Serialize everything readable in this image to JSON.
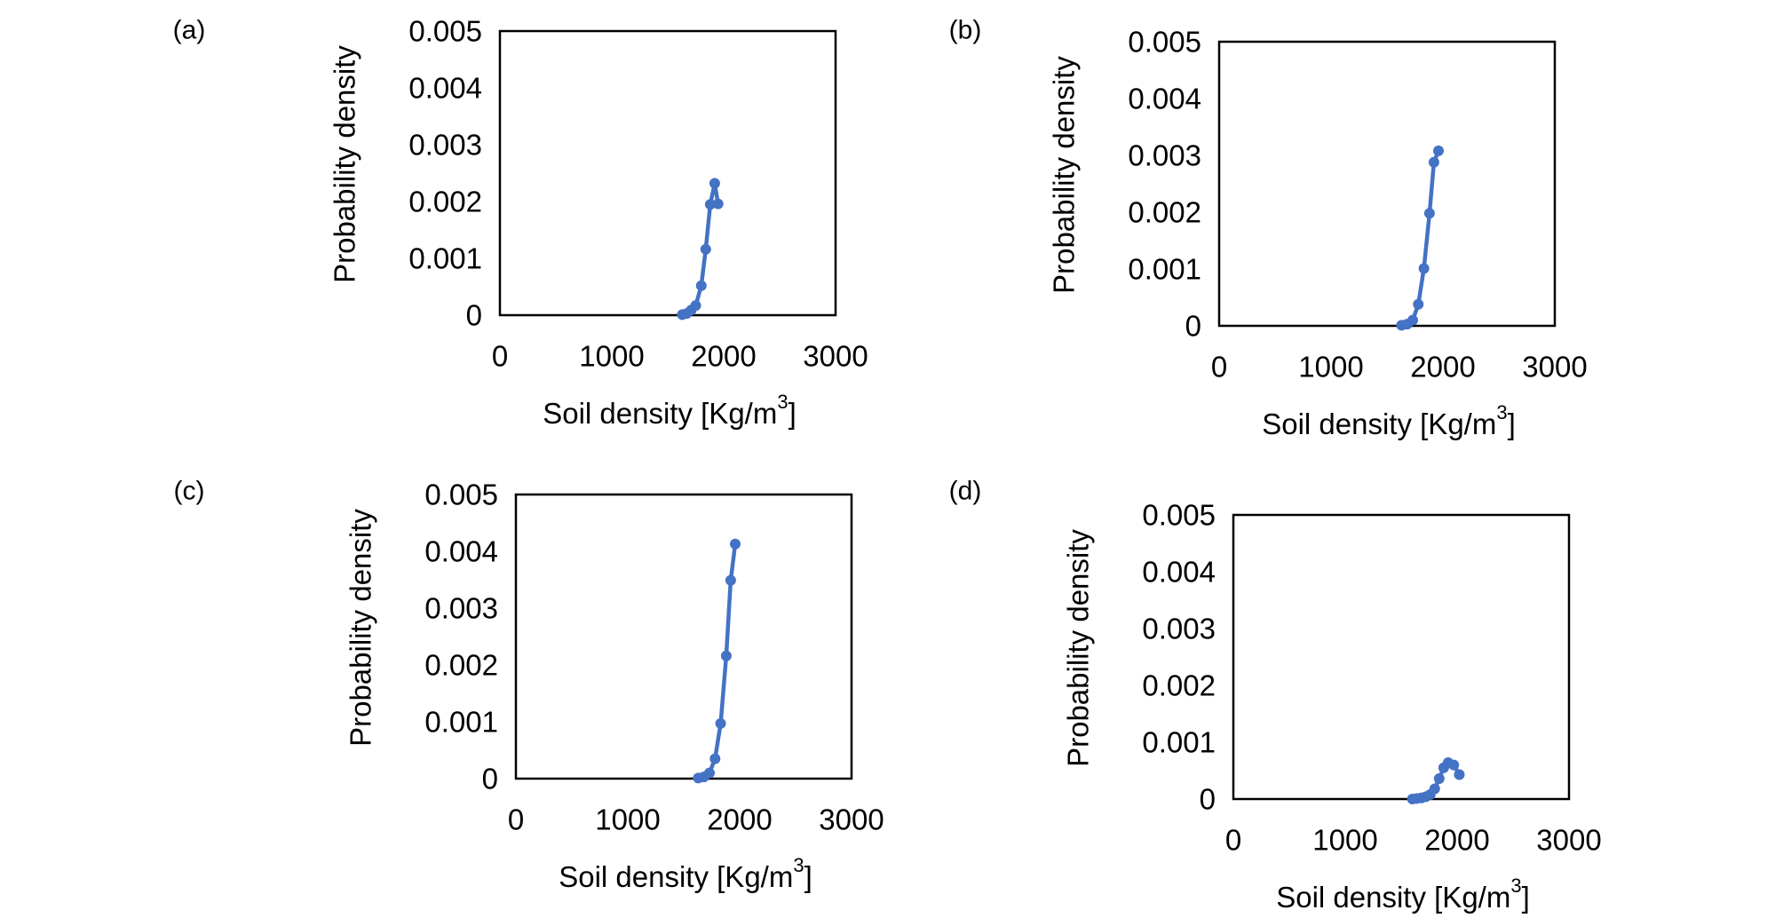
{
  "figure": {
    "panels_label": "Soil density probability density panels"
  },
  "chart_data": [
    {
      "type": "line",
      "panel_label": "(a)",
      "xlabel": "Soil density  [Kg/m",
      "xlabel_sup": "3",
      "xlabel_close": "]",
      "ylabel": "Probability  density",
      "xlim": [
        0,
        3000
      ],
      "ylim": [
        0,
        0.005
      ],
      "x_ticks": [
        "0",
        "1000",
        "2000",
        "3000"
      ],
      "y_ticks": [
        "0",
        "0.001",
        "0.002",
        "0.003",
        "0.004",
        "0.005"
      ],
      "color": "#4472C4",
      "series": [
        {
          "x": [
            1630,
            1670,
            1710,
            1750,
            1800,
            1840,
            1880,
            1920,
            1950
          ],
          "y": [
            1e-05,
            3e-05,
            9e-05,
            0.00017,
            0.00052,
            0.00116,
            0.00195,
            0.00232,
            0.00196
          ]
        }
      ]
    },
    {
      "type": "line",
      "panel_label": "(b)",
      "xlabel": "Soil density  [Kg/m",
      "xlabel_sup": "3",
      "xlabel_close": "]",
      "ylabel": "Probability  density",
      "xlim": [
        0,
        3000
      ],
      "ylim": [
        0,
        0.005
      ],
      "x_ticks": [
        "0",
        "1000",
        "2000",
        "3000"
      ],
      "y_ticks": [
        "0",
        "0.001",
        "0.002",
        "0.003",
        "0.004",
        "0.005"
      ],
      "color": "#4472C4",
      "series": [
        {
          "x": [
            1630,
            1680,
            1730,
            1780,
            1830,
            1880,
            1920,
            1960
          ],
          "y": [
            1e-05,
            3e-05,
            0.0001,
            0.00038,
            0.00101,
            0.00198,
            0.00288,
            0.00308
          ]
        }
      ]
    },
    {
      "type": "line",
      "panel_label": "(c)",
      "xlabel": "Soil density  [Kg/m",
      "xlabel_sup": "3",
      "xlabel_close": "]",
      "ylabel": "Probability  density",
      "xlim": [
        0,
        3000
      ],
      "ylim": [
        0,
        0.005
      ],
      "x_ticks": [
        "0",
        "1000",
        "2000",
        "3000"
      ],
      "y_ticks": [
        "0",
        "0.001",
        "0.002",
        "0.003",
        "0.004",
        "0.005"
      ],
      "color": "#4472C4",
      "series": [
        {
          "x": [
            1630,
            1680,
            1730,
            1780,
            1830,
            1880,
            1920,
            1960
          ],
          "y": [
            1e-05,
            3e-05,
            0.0001,
            0.00035,
            0.00097,
            0.00216,
            0.00349,
            0.00413
          ]
        }
      ]
    },
    {
      "type": "line",
      "panel_label": "(d)",
      "xlabel": "Soil density  [Kg/m",
      "xlabel_sup": "3",
      "xlabel_close": "]",
      "ylabel": "Probability  density",
      "xlim": [
        0,
        3000
      ],
      "ylim": [
        0,
        0.005
      ],
      "x_ticks": [
        "0",
        "1000",
        "2000",
        "3000"
      ],
      "y_ticks": [
        "0",
        "0.001",
        "0.002",
        "0.003",
        "0.004",
        "0.005"
      ],
      "color": "#4472C4",
      "series": [
        {
          "x": [
            1600,
            1640,
            1680,
            1720,
            1760,
            1800,
            1840,
            1880,
            1920,
            1970,
            2020
          ],
          "y": [
            0.0,
            1e-05,
            2e-05,
            4e-05,
            8e-05,
            0.00018,
            0.00036,
            0.00055,
            0.00064,
            0.0006,
            0.00043
          ]
        }
      ]
    }
  ]
}
